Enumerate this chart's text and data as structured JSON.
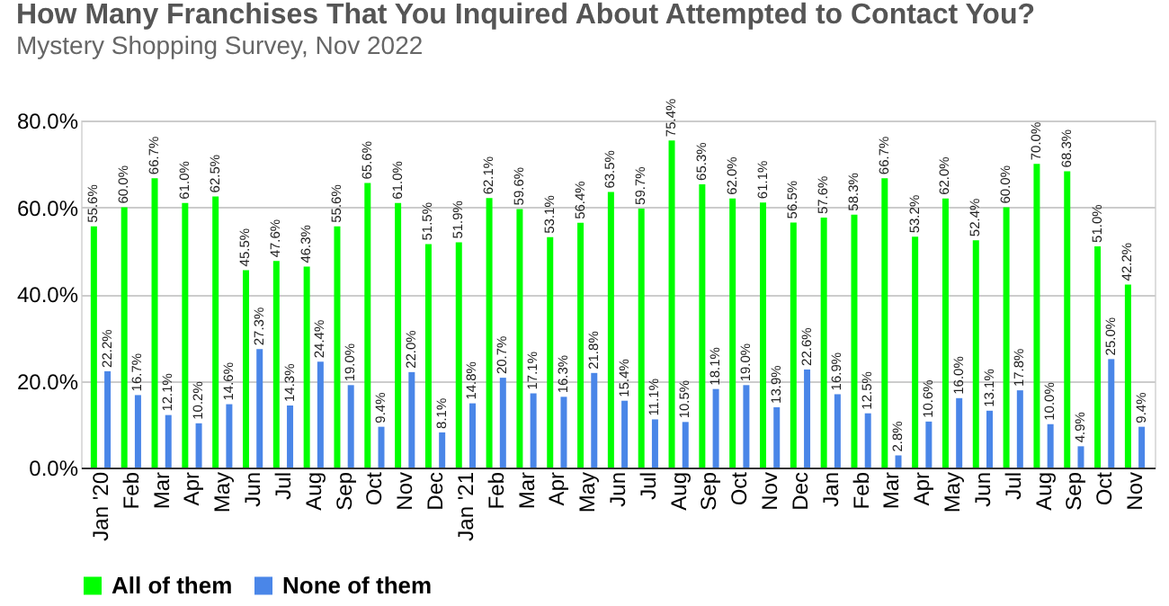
{
  "chart_data": {
    "type": "bar",
    "title": "How Many Franchises That You Inquired About Attempted to Contact You?",
    "subtitle": "Mystery Shopping Survey, Nov 2022",
    "categories": [
      "Jan '20",
      "Feb",
      "Mar",
      "Apr",
      "May",
      "Jun",
      "Jul",
      "Aug",
      "Sep",
      "Oct",
      "Nov",
      "Dec",
      "Jan '21",
      "Feb",
      "Mar",
      "Apr",
      "May",
      "Jun",
      "Jul",
      "Aug",
      "Sep",
      "Oct",
      "Nov",
      "Dec",
      "Jan",
      "Feb",
      "Mar",
      "Apr",
      "May",
      "Jun",
      "Jul",
      "Aug",
      "Sep",
      "Oct",
      "Nov"
    ],
    "series": [
      {
        "name": "All of them",
        "color": "#00ff00",
        "values": [
          55.6,
          60.0,
          66.7,
          61.0,
          62.5,
          45.5,
          47.6,
          46.3,
          55.6,
          65.6,
          61.0,
          51.5,
          51.9,
          62.1,
          59.6,
          53.1,
          56.4,
          63.5,
          59.7,
          75.4,
          65.3,
          62.0,
          61.1,
          56.5,
          57.6,
          58.3,
          66.7,
          53.2,
          62.0,
          52.4,
          60.0,
          70.0,
          68.3,
          51.0,
          42.2
        ],
        "value_labels": [
          "55.6%",
          "60.0%",
          "66.7%",
          "61.0%",
          "62.5%",
          "45.5%",
          "47.6%",
          "46.3%",
          "55.6%",
          "65.6%",
          "61.0%",
          "51.5%",
          "51.9%",
          "62.1%",
          "59.6%",
          "53.1%",
          "56.4%",
          "63.5%",
          "59.7%",
          "75.4%",
          "65.3%",
          "62.0%",
          "61.1%",
          "56.5%",
          "57.6%",
          "58.3%",
          "66.7%",
          "53.2%",
          "62.0%",
          "52.4%",
          "60.0%",
          "70.0%",
          "68.3%",
          "51.0%",
          "42.2%"
        ]
      },
      {
        "name": "None of them",
        "color": "#4a86e8",
        "values": [
          22.2,
          16.7,
          12.1,
          10.2,
          14.6,
          27.3,
          14.3,
          24.4,
          19.0,
          9.4,
          22.0,
          8.1,
          14.8,
          20.7,
          17.1,
          16.3,
          21.8,
          15.4,
          11.1,
          10.5,
          18.1,
          19.0,
          13.9,
          22.6,
          16.9,
          12.5,
          2.8,
          10.6,
          16.0,
          13.1,
          17.8,
          10.0,
          4.9,
          25.0,
          9.4
        ],
        "value_labels": [
          "22.2%",
          "16.7%",
          "12.1%",
          "10.2%",
          "14.6%",
          "27.3%",
          "14.3%",
          "24.4%",
          "19.0%",
          "9.4%",
          "22.0%",
          "8.1%",
          "14.8%",
          "20.7%",
          "17.1%",
          "16.3%",
          "21.8%",
          "15.4%",
          "11.1%",
          "10.5%",
          "18.1%",
          "19.0%",
          "13.9%",
          "22.6%",
          "16.9%",
          "12.5%",
          "2.8%",
          "10.6%",
          "16.0%",
          "13.1%",
          "17.8%",
          "10.0%",
          "4.9%",
          "25.0%",
          "9.4%"
        ]
      }
    ],
    "ylim": [
      0,
      80
    ],
    "yticks": [
      {
        "value": 0,
        "label": "0.0%"
      },
      {
        "value": 20,
        "label": "20.0%"
      },
      {
        "value": 40,
        "label": "40.0%"
      },
      {
        "value": 60,
        "label": "60.0%"
      },
      {
        "value": 80,
        "label": "80.0%"
      }
    ],
    "grid": "y",
    "legend": "bottom"
  }
}
